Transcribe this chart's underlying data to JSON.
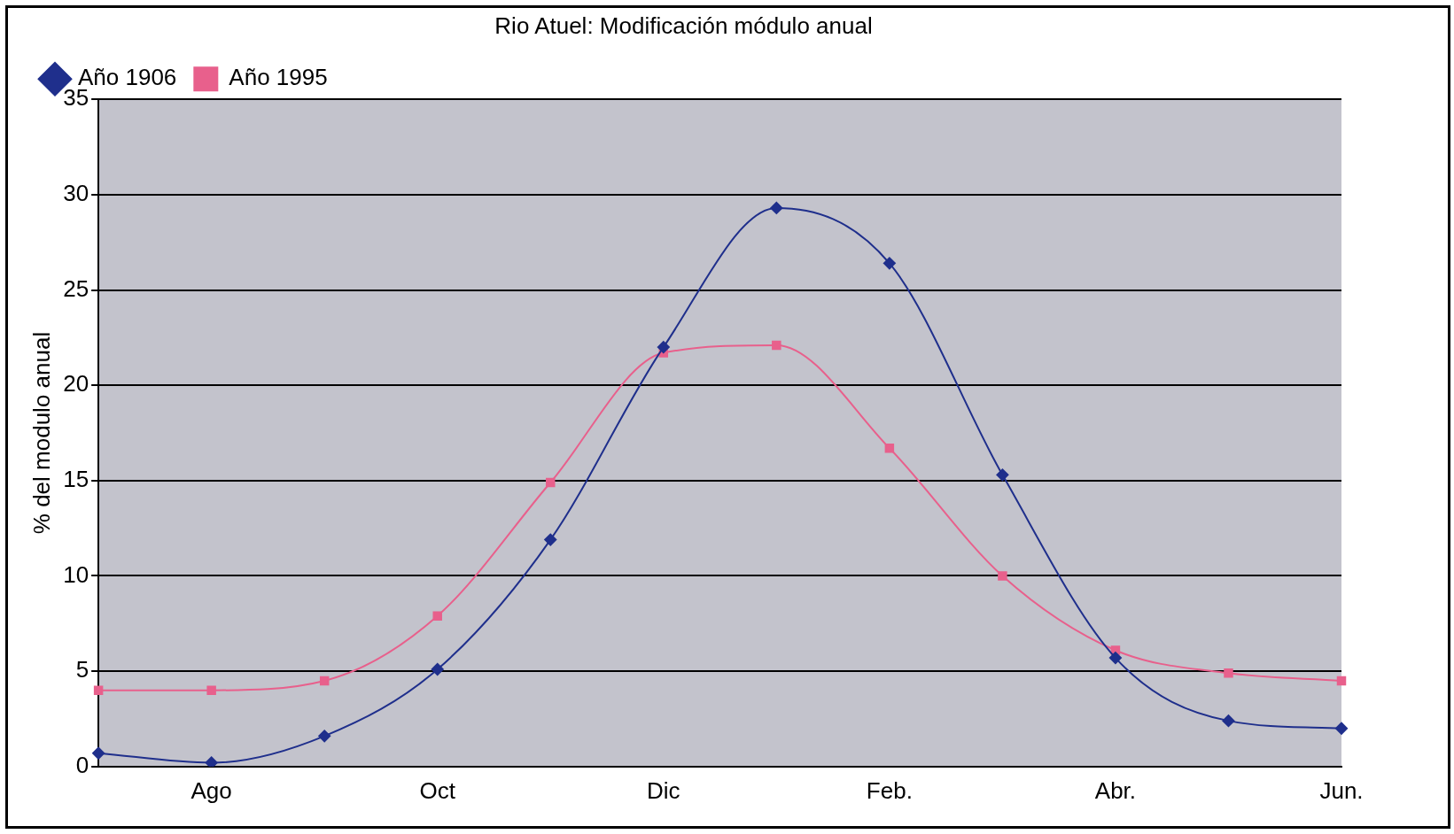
{
  "chart_data": {
    "type": "line",
    "title": "Rio Atuel: Modificación módulo anual",
    "ylabel": "% del modulo anual",
    "categories": [
      null,
      "Ago",
      null,
      "Oct",
      null,
      "Dic",
      null,
      "Feb.",
      null,
      "Abr.",
      null,
      "Jun."
    ],
    "series": [
      {
        "name": "Año 1906",
        "color": "#1f2f8c",
        "marker": "diamond",
        "values": [
          0.7,
          0.2,
          1.6,
          5.1,
          11.9,
          22.0,
          29.3,
          26.4,
          15.3,
          5.7,
          2.4,
          2.0
        ]
      },
      {
        "name": "Año 1995",
        "color": "#e8608c",
        "marker": "square",
        "values": [
          4.0,
          4.0,
          4.5,
          7.9,
          14.9,
          21.7,
          22.1,
          16.7,
          10.0,
          6.1,
          4.9,
          4.5
        ]
      }
    ],
    "ylim": [
      0,
      35
    ],
    "yticks": [
      0,
      5,
      10,
      15,
      20,
      25,
      30,
      35
    ],
    "grid": "y",
    "legend": "top left"
  }
}
